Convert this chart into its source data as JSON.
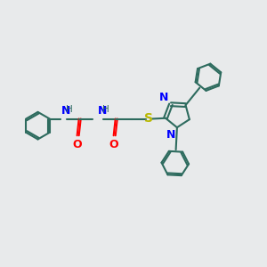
{
  "bg_color": "#e8eaeb",
  "bond_color": "#2d6b5e",
  "N_color": "#0000ff",
  "O_color": "#ff0000",
  "S_color": "#b8b800",
  "line_width": 1.5,
  "font_size": 9,
  "figsize": [
    3.0,
    3.0
  ],
  "dpi": 100,
  "xlim": [
    0,
    10
  ],
  "ylim": [
    0,
    10
  ]
}
